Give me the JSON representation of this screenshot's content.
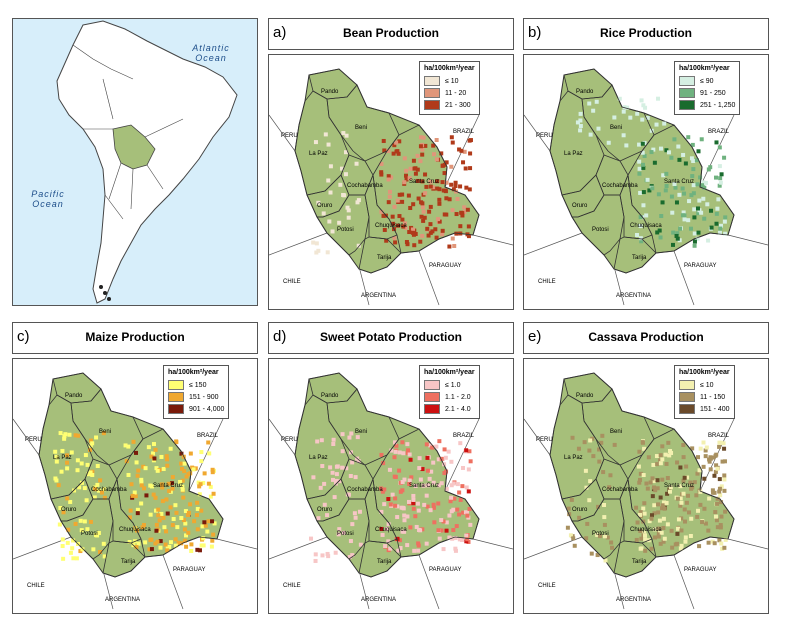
{
  "overview": {
    "atlantic_label": "Atlantic Ocean",
    "pacific_label": "Pacific Ocean",
    "colors": {
      "ocean": "#d7eefa",
      "land": "#ffffff",
      "highlight": "#a6bf7a"
    }
  },
  "common_labels": {
    "departments": [
      "Pando",
      "Beni",
      "La Paz",
      "Cochabamba",
      "Santa Cruz",
      "Oruro",
      "Potosi",
      "Chuquisaca",
      "Tarija"
    ],
    "countries": [
      "PERU",
      "BRAZIL",
      "CHILE",
      "PARAGUAY",
      "ARGENTINA"
    ]
  },
  "panels": [
    {
      "letter": "a)",
      "title": "Bean Production",
      "legend_title": "ha/100km²/year",
      "classes": [
        {
          "label": "≤ 10",
          "color": "#f1e6d4"
        },
        {
          "label": "11 - 20",
          "color": "#e0967a"
        },
        {
          "label": "21 - 300",
          "color": "#b03a1a"
        }
      ]
    },
    {
      "letter": "b)",
      "title": "Rice Production",
      "legend_title": "ha/100km²/year",
      "classes": [
        {
          "label": "≤ 90",
          "color": "#d5efe2"
        },
        {
          "label": "91 - 250",
          "color": "#6fb27f"
        },
        {
          "label": "251 - 1,250",
          "color": "#1a6b2e"
        }
      ]
    },
    {
      "letter": "c)",
      "title": "Maize Production",
      "legend_title": "ha/100km²/year",
      "classes": [
        {
          "label": "≤ 150",
          "color": "#ffff73"
        },
        {
          "label": "151 - 900",
          "color": "#f0a830"
        },
        {
          "label": "901 - 4,000",
          "color": "#7a1a0a"
        }
      ]
    },
    {
      "letter": "d)",
      "title": "Sweet Potato Production",
      "legend_title": "ha/100km²/year",
      "classes": [
        {
          "label": "≤ 1.0",
          "color": "#f7c6c6"
        },
        {
          "label": "1.1 - 2.0",
          "color": "#ee7060"
        },
        {
          "label": "2.1 - 4.0",
          "color": "#cc1010"
        }
      ]
    },
    {
      "letter": "e)",
      "title": "Cassava Production",
      "legend_title": "ha/100km²/year",
      "classes": [
        {
          "label": "≤ 10",
          "color": "#f3f0b0"
        },
        {
          "label": "11 - 150",
          "color": "#a89060"
        },
        {
          "label": "151 - 400",
          "color": "#6a4a2a"
        }
      ]
    }
  ],
  "map_colors": {
    "bolivia_base": "#a6bf7a",
    "outline": "#333333"
  }
}
